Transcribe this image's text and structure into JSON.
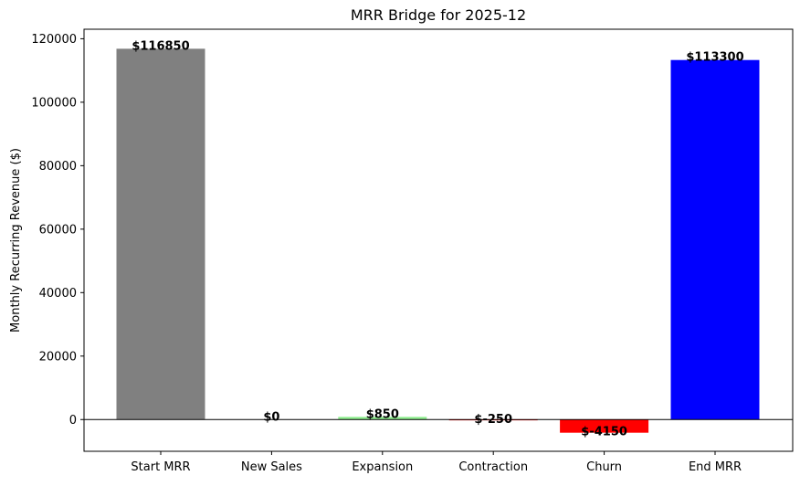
{
  "chart_data": {
    "type": "bar",
    "title": "MRR Bridge for 2025-12",
    "xlabel": "",
    "ylabel": "Monthly Recurring Revenue ($)",
    "categories": [
      "Start MRR",
      "New Sales",
      "Expansion",
      "Contraction",
      "Churn",
      "End MRR"
    ],
    "values": [
      116850,
      0,
      850,
      -250,
      -4150,
      113300
    ],
    "data_labels": [
      "$116850",
      "$0",
      "$850",
      "$-250",
      "$-4150",
      "$113300"
    ],
    "colors": [
      "#808080",
      "#90ee90",
      "#90ee90",
      "#ff0000",
      "#ff0000",
      "#0000ff"
    ],
    "ylim": [
      -10000,
      123000
    ],
    "yticks": [
      0,
      20000,
      40000,
      60000,
      80000,
      100000,
      120000
    ],
    "ytick_labels": [
      "0",
      "20000",
      "40000",
      "60000",
      "80000",
      "100000",
      "120000"
    ],
    "zero_line": true,
    "grid": false,
    "legend": "none"
  }
}
